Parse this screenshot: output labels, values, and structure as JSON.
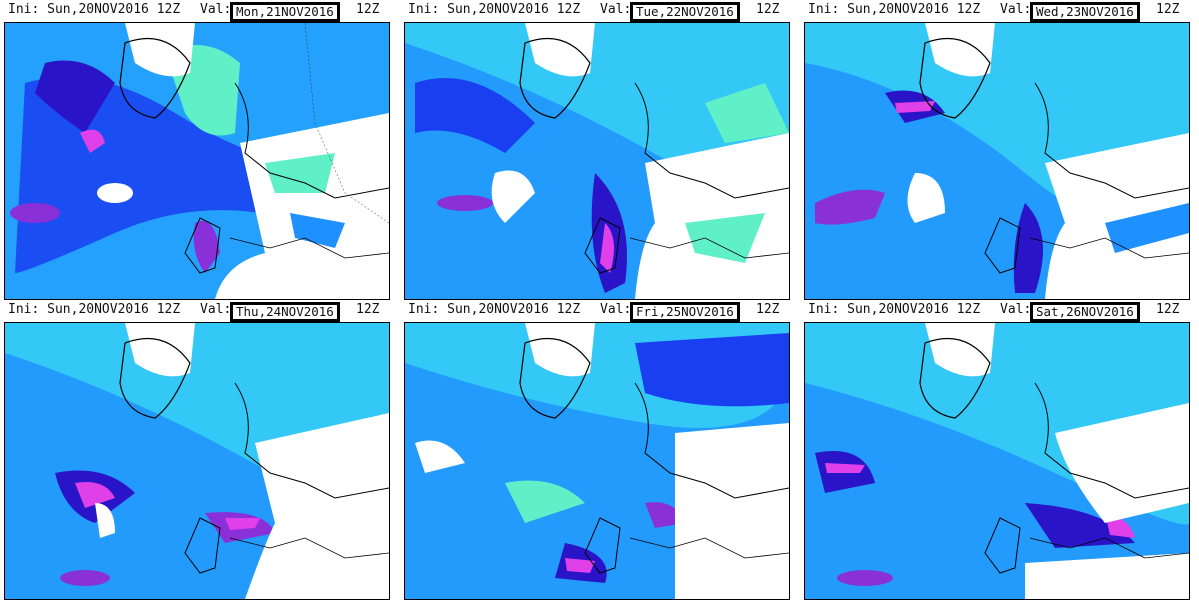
{
  "figure": {
    "type": "precipitation forecast map grid",
    "panels": [
      {
        "init": "Ini: Sun,20NOV2016 12Z",
        "val_label": "Val:",
        "valid": "Mon,21NOV2016",
        "run": "12Z"
      },
      {
        "init": "Ini: Sun,20NOV2016 12Z",
        "val_label": "Val:",
        "valid": "Tue,22NOV2016",
        "run": "12Z"
      },
      {
        "init": "Ini: Sun,20NOV2016 12Z",
        "val_label": "Val:",
        "valid": "Wed,23NOV2016",
        "run": "12Z"
      },
      {
        "init": "Ini: Sun,20NOV2016 12Z",
        "val_label": "Val:",
        "valid": "Thu,24NOV2016",
        "run": "12Z"
      },
      {
        "init": "Ini: Sun,20NOV2016 12Z",
        "val_label": "Val:",
        "valid": "Fri,25NOV2016",
        "run": "12Z"
      },
      {
        "init": "Ini: Sun,20NOV2016 12Z",
        "val_label": "Val:",
        "valid": "Sat,26NOV2016",
        "run": "12Z"
      }
    ]
  },
  "colors": {
    "light": "#5ff0c8",
    "cyan": "#33c8f5",
    "medium": "#1e90ff",
    "blue": "#1a3ff0",
    "dark": "#2a14c8",
    "purple": "#8a30d8",
    "magenta": "#e040e8",
    "coast": "#000000"
  }
}
